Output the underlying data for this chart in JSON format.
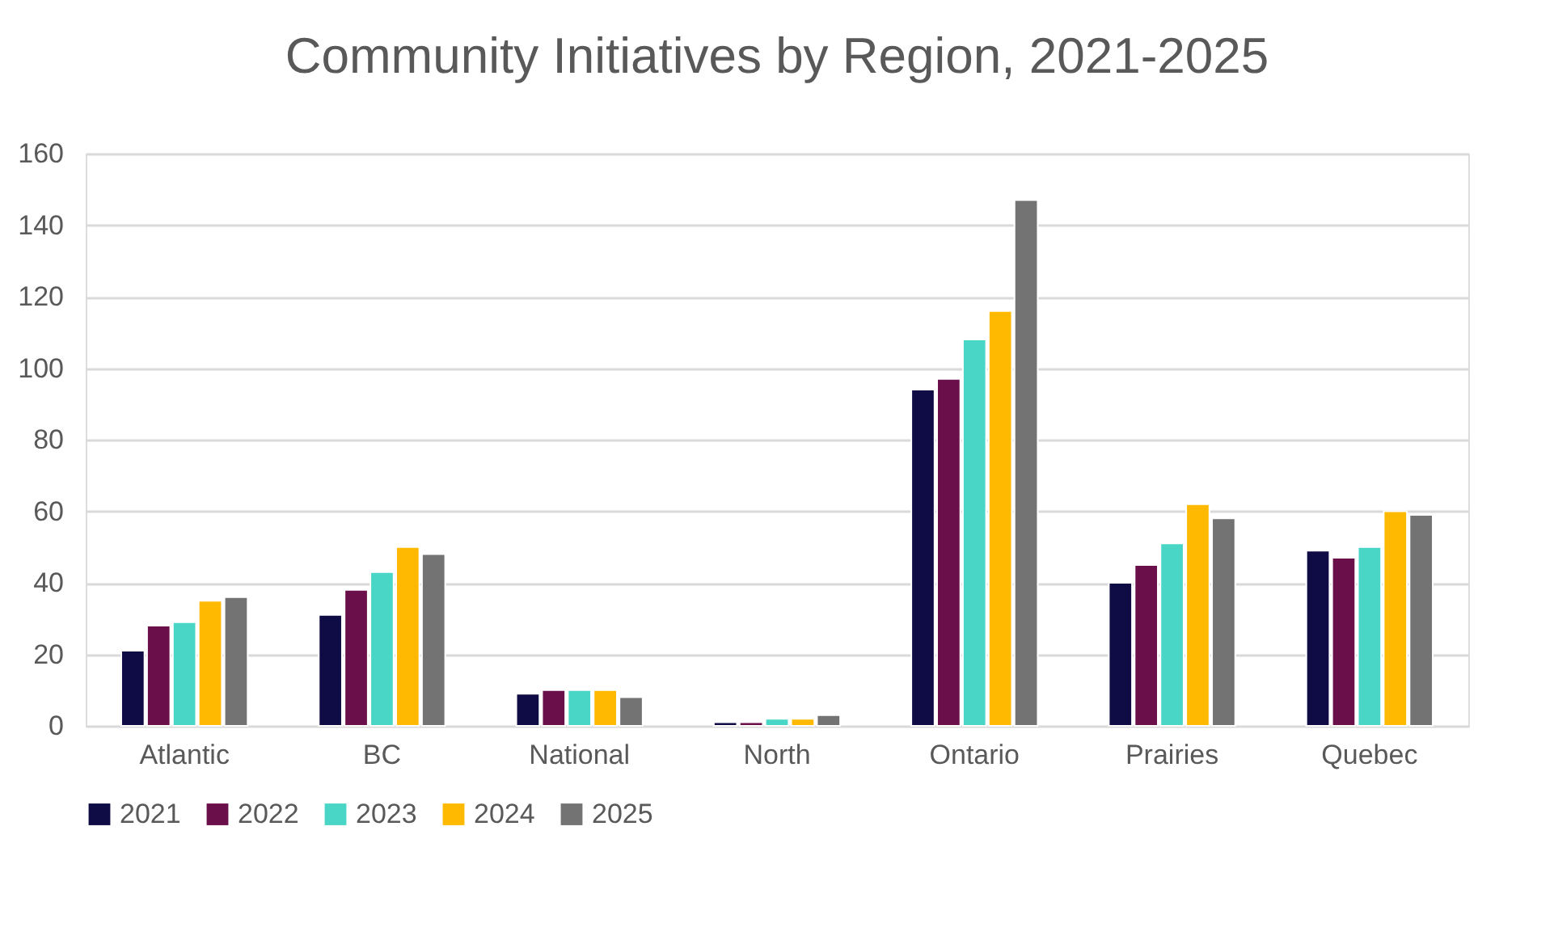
{
  "chart_data": {
    "type": "bar",
    "title": "Community Initiatives by Region, 2021-2025",
    "categories": [
      "Atlantic",
      "BC",
      "National",
      "North",
      "Ontario",
      "Prairies",
      "Quebec"
    ],
    "series": [
      {
        "name": "2021",
        "color": "#0e0b45",
        "values": [
          21,
          31,
          9,
          1,
          94,
          40,
          49
        ]
      },
      {
        "name": "2022",
        "color": "#6b0f4a",
        "values": [
          28,
          38,
          10,
          1,
          97,
          45,
          47
        ]
      },
      {
        "name": "2023",
        "color": "#4ad6c6",
        "values": [
          29,
          43,
          10,
          2,
          108,
          51,
          50
        ]
      },
      {
        "name": "2024",
        "color": "#ffb900",
        "values": [
          35,
          50,
          10,
          2,
          116,
          62,
          60
        ]
      },
      {
        "name": "2025",
        "color": "#737373",
        "values": [
          36,
          48,
          8,
          3,
          147,
          58,
          59
        ]
      }
    ],
    "ylim": [
      0,
      160
    ],
    "yticks": [
      0,
      20,
      40,
      60,
      80,
      100,
      120,
      140,
      160
    ],
    "grid": "y",
    "legend": "bottom"
  }
}
